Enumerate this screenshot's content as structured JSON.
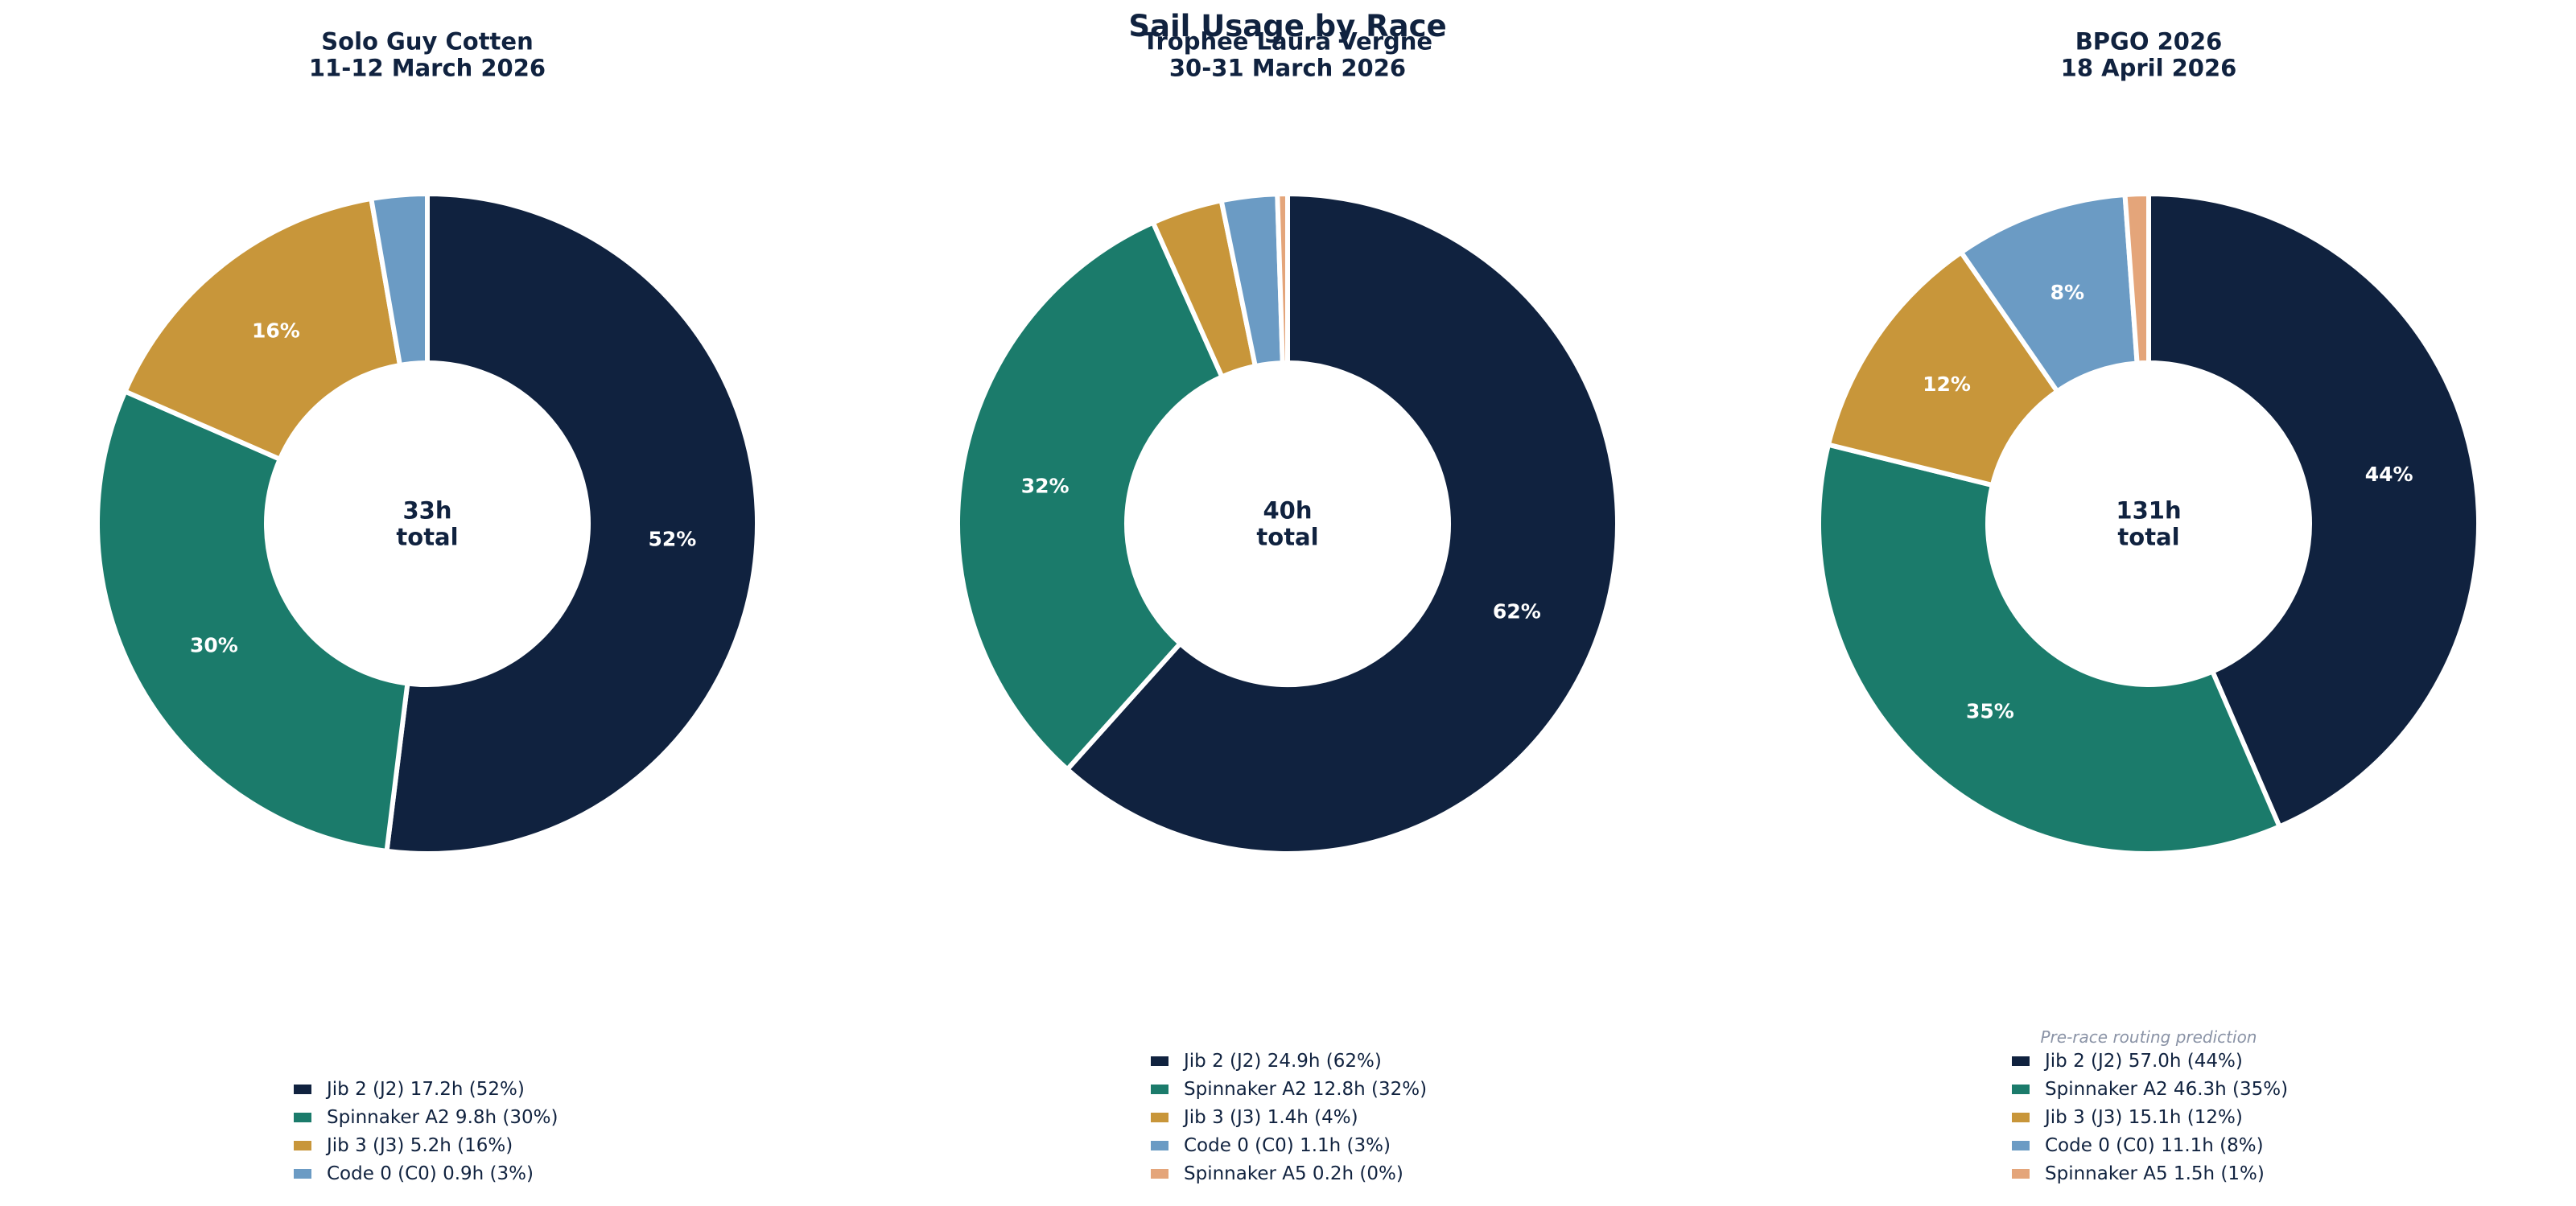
{
  "figure": {
    "title": "Sail Usage by Race"
  },
  "colors": {
    "navy": "#10223f",
    "teal": "#1b7b6b",
    "gold": "#c8963a",
    "blue": "#6b9bc4",
    "peach": "#e4a57a",
    "title_text": "#10223f",
    "slice_border": "#ffffff",
    "note_text": "#8a93a6"
  },
  "chart_data": [
    {
      "type": "pie",
      "title": "Solo Guy Cotten\n11-12 March 2026",
      "center_label": "33h\ntotal",
      "slices": [
        {
          "label": "Jib 2 (J2)",
          "hours": 17.2,
          "percent": 52,
          "color": "#10223f",
          "legend": "Jib 2 (J2)  17.2h  (52%)",
          "pct_label": "52%"
        },
        {
          "label": "Spinnaker A2",
          "hours": 9.8,
          "percent": 30,
          "color": "#1b7b6b",
          "legend": "Spinnaker A2  9.8h  (30%)",
          "pct_label": "30%"
        },
        {
          "label": "Jib 3 (J3)",
          "hours": 5.2,
          "percent": 16,
          "color": "#c8963a",
          "legend": "Jib 3 (J3)  5.2h  (16%)",
          "pct_label": "16%"
        },
        {
          "label": "Code 0 (C0)",
          "hours": 0.9,
          "percent": 3,
          "color": "#6b9bc4",
          "legend": "Code 0 (C0)  0.9h  (3%)",
          "pct_label": ""
        }
      ],
      "note": ""
    },
    {
      "type": "pie",
      "title": "Trophee Laura Vergne\n30-31 March 2026",
      "center_label": "40h\ntotal",
      "slices": [
        {
          "label": "Jib 2 (J2)",
          "hours": 24.9,
          "percent": 62,
          "color": "#10223f",
          "legend": "Jib 2 (J2)  24.9h  (62%)",
          "pct_label": "62%"
        },
        {
          "label": "Spinnaker A2",
          "hours": 12.8,
          "percent": 32,
          "color": "#1b7b6b",
          "legend": "Spinnaker A2  12.8h  (32%)",
          "pct_label": "32%"
        },
        {
          "label": "Jib 3 (J3)",
          "hours": 1.4,
          "percent": 4,
          "color": "#c8963a",
          "legend": "Jib 3 (J3)  1.4h  (4%)",
          "pct_label": ""
        },
        {
          "label": "Code 0 (C0)",
          "hours": 1.1,
          "percent": 3,
          "color": "#6b9bc4",
          "legend": "Code 0 (C0)  1.1h  (3%)",
          "pct_label": ""
        },
        {
          "label": "Spinnaker A5",
          "hours": 0.2,
          "percent": 0,
          "color": "#e4a57a",
          "legend": "Spinnaker A5  0.2h  (0%)",
          "pct_label": ""
        }
      ],
      "note": ""
    },
    {
      "type": "pie",
      "title": "BPGO 2026\n18 April 2026",
      "center_label": "131h\ntotal",
      "slices": [
        {
          "label": "Jib 2 (J2)",
          "hours": 57.0,
          "percent": 44,
          "color": "#10223f",
          "legend": "Jib 2 (J2)  57.0h  (44%)",
          "pct_label": "44%"
        },
        {
          "label": "Spinnaker A2",
          "hours": 46.3,
          "percent": 35,
          "color": "#1b7b6b",
          "legend": "Spinnaker A2  46.3h  (35%)",
          "pct_label": "35%"
        },
        {
          "label": "Jib 3 (J3)",
          "hours": 15.1,
          "percent": 12,
          "color": "#c8963a",
          "legend": "Jib 3 (J3)  15.1h  (12%)",
          "pct_label": "12%"
        },
        {
          "label": "Code 0 (C0)",
          "hours": 11.1,
          "percent": 8,
          "color": "#6b9bc4",
          "legend": "Code 0 (C0)  11.1h  (8%)",
          "pct_label": "8%"
        },
        {
          "label": "Spinnaker A5",
          "hours": 1.5,
          "percent": 1,
          "color": "#e4a57a",
          "legend": "Spinnaker A5  1.5h  (1%)",
          "pct_label": ""
        }
      ],
      "note": "Pre-race routing prediction"
    }
  ]
}
